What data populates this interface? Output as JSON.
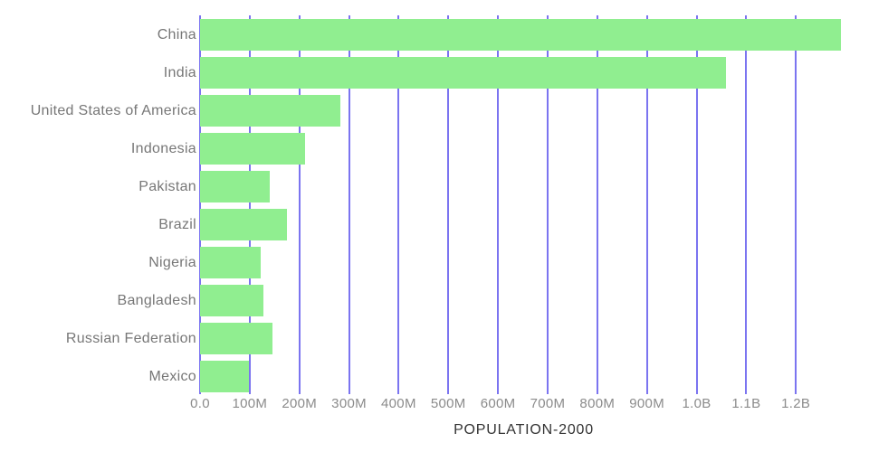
{
  "chart_data": {
    "type": "bar",
    "orientation": "horizontal",
    "title": "",
    "xlabel": "POPULATION-2000",
    "ylabel": "",
    "categories": [
      "China",
      "India",
      "United States of America",
      "Indonesia",
      "Pakistan",
      "Brazil",
      "Nigeria",
      "Bangladesh",
      "Russian Federation",
      "Mexico"
    ],
    "values": [
      1290000000,
      1059000000,
      282000000,
      211000000,
      140000000,
      175000000,
      122000000,
      127000000,
      145000000,
      99000000
    ],
    "x_tick_values": [
      0,
      100000000,
      200000000,
      300000000,
      400000000,
      500000000,
      600000000,
      700000000,
      800000000,
      900000000,
      1000000000,
      1100000000,
      1200000000
    ],
    "x_tick_labels": [
      "0.0",
      "100M",
      "200M",
      "300M",
      "400M",
      "500M",
      "600M",
      "700M",
      "800M",
      "900M",
      "1.0B",
      "1.1B",
      "1.2B"
    ],
    "xlim": [
      0,
      1304000000
    ],
    "grid": true,
    "legend": false,
    "colors": {
      "bar": "#90ee90",
      "gridline": "#7b74f0",
      "category_label": "#777777",
      "tick_label": "#8b8b8b",
      "axis_title": "#333333",
      "background": "#ffffff"
    }
  }
}
